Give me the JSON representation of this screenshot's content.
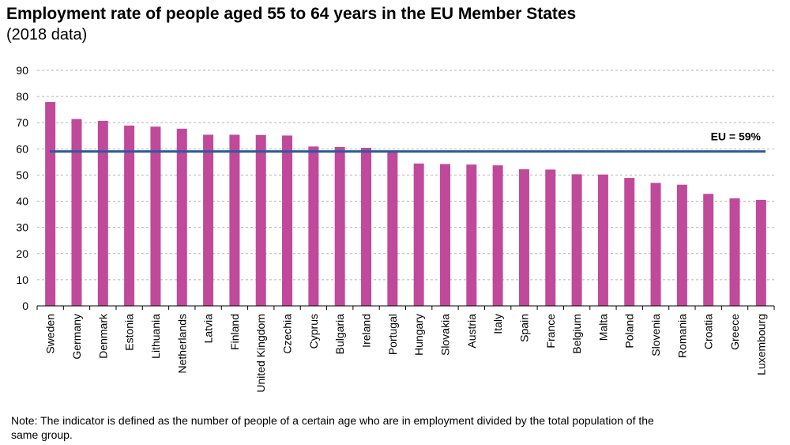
{
  "chart_data": {
    "type": "bar",
    "title": "Employment rate of people aged 55 to 64 years in the EU Member States",
    "subtitle": "(2018 data)",
    "xlabel": "",
    "ylabel": "",
    "ylim": [
      0,
      90
    ],
    "yticks": [
      0,
      10,
      20,
      30,
      40,
      50,
      60,
      70,
      80,
      90
    ],
    "grid": true,
    "categories": [
      "Sweden",
      "Germany",
      "Denmark",
      "Estonia",
      "Lithuania",
      "Netherlands",
      "Latvia",
      "Finland",
      "United Kingdom",
      "Czechia",
      "Cyprus",
      "Bulgaria",
      "Ireland",
      "Portugal",
      "Hungary",
      "Slovakia",
      "Austria",
      "Italy",
      "Spain",
      "France",
      "Belgium",
      "Malta",
      "Poland",
      "Slovenia",
      "Romania",
      "Croatia",
      "Greece",
      "Luxembourg"
    ],
    "values": [
      77.9,
      71.4,
      70.7,
      68.9,
      68.5,
      67.7,
      65.4,
      65.4,
      65.3,
      65.1,
      60.9,
      60.7,
      60.4,
      59.2,
      54.4,
      54.2,
      54.0,
      53.7,
      52.2,
      52.1,
      50.3,
      50.2,
      48.9,
      47.0,
      46.3,
      42.8,
      41.1,
      40.5
    ],
    "bar_color": "#c0499b",
    "reference_line": {
      "value": 59,
      "label": "EU = 59%",
      "color": "#2b5b9a"
    }
  },
  "note": "Note: The indicator is defined as the number of people of a certain age who are in employment divided by the total population of the same group."
}
